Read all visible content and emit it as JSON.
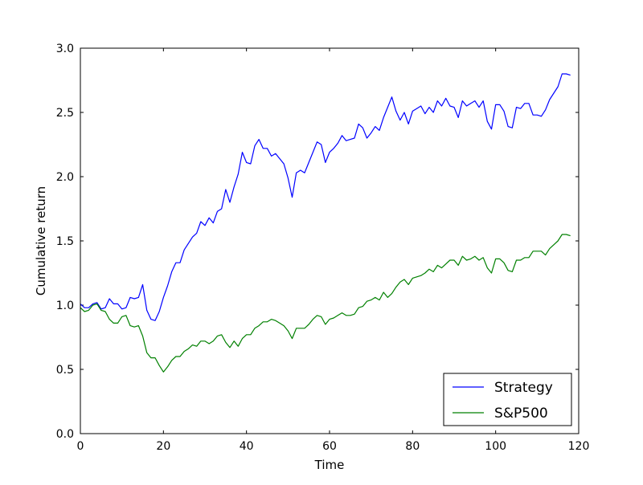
{
  "chart_data": {
    "type": "line",
    "xlabel": "Time",
    "ylabel": "Cumulative return",
    "xlim": [
      0,
      120
    ],
    "ylim": [
      0.0,
      3.0
    ],
    "xticks": [
      "0",
      "20",
      "40",
      "60",
      "80",
      "100",
      "120"
    ],
    "yticks": [
      "0.0",
      "0.5",
      "1.0",
      "1.5",
      "2.0",
      "2.5",
      "3.0"
    ],
    "grid": false,
    "legend_position": "lower-right",
    "series": [
      {
        "name": "Strategy",
        "color": "#0000ff",
        "x": [
          0,
          1,
          2,
          3,
          4,
          5,
          6,
          7,
          8,
          9,
          10,
          11,
          12,
          13,
          14,
          15,
          16,
          17,
          18,
          19,
          20,
          21,
          22,
          23,
          24,
          25,
          26,
          27,
          28,
          29,
          30,
          31,
          32,
          33,
          34,
          35,
          36,
          37,
          38,
          39,
          40,
          41,
          42,
          43,
          44,
          45,
          46,
          47,
          48,
          49,
          50,
          51,
          52,
          53,
          54,
          55,
          56,
          57,
          58,
          59,
          60,
          61,
          62,
          63,
          64,
          65,
          66,
          67,
          68,
          69,
          70,
          71,
          72,
          73,
          74,
          75,
          76,
          77,
          78,
          79,
          80,
          81,
          82,
          83,
          84,
          85,
          86,
          87,
          88,
          89,
          90,
          91,
          92,
          93,
          94,
          95,
          96,
          97,
          98,
          99,
          100,
          101,
          102,
          103,
          104,
          105,
          106,
          107,
          108,
          109,
          110,
          111,
          112,
          113,
          114,
          115,
          116,
          117,
          118
        ],
        "values": [
          1.01,
          0.98,
          0.98,
          1.01,
          1.02,
          0.97,
          0.98,
          1.05,
          1.01,
          1.01,
          0.97,
          0.98,
          1.06,
          1.05,
          1.06,
          1.16,
          0.96,
          0.89,
          0.88,
          0.95,
          1.06,
          1.15,
          1.26,
          1.33,
          1.33,
          1.43,
          1.48,
          1.53,
          1.56,
          1.65,
          1.62,
          1.68,
          1.64,
          1.73,
          1.75,
          1.9,
          1.8,
          1.92,
          2.02,
          2.19,
          2.11,
          2.1,
          2.24,
          2.29,
          2.22,
          2.22,
          2.16,
          2.18,
          2.14,
          2.1,
          1.99,
          1.84,
          2.03,
          2.05,
          2.03,
          2.11,
          2.19,
          2.27,
          2.25,
          2.11,
          2.19,
          2.22,
          2.26,
          2.32,
          2.28,
          2.29,
          2.3,
          2.41,
          2.38,
          2.3,
          2.34,
          2.39,
          2.36,
          2.46,
          2.54,
          2.62,
          2.51,
          2.44,
          2.5,
          2.41,
          2.51,
          2.53,
          2.55,
          2.49,
          2.54,
          2.5,
          2.59,
          2.55,
          2.61,
          2.55,
          2.54,
          2.46,
          2.59,
          2.55,
          2.57,
          2.59,
          2.54,
          2.59,
          2.43,
          2.37,
          2.56,
          2.56,
          2.51,
          2.39,
          2.38,
          2.54,
          2.53,
          2.57,
          2.57,
          2.48,
          2.48,
          2.47,
          2.52,
          2.6,
          2.65,
          2.7,
          2.8,
          2.8,
          2.79
        ]
      },
      {
        "name": "S&P500",
        "color": "#008000",
        "x": [
          0,
          1,
          2,
          3,
          4,
          5,
          6,
          7,
          8,
          9,
          10,
          11,
          12,
          13,
          14,
          15,
          16,
          17,
          18,
          19,
          20,
          21,
          22,
          23,
          24,
          25,
          26,
          27,
          28,
          29,
          30,
          31,
          32,
          33,
          34,
          35,
          36,
          37,
          38,
          39,
          40,
          41,
          42,
          43,
          44,
          45,
          46,
          47,
          48,
          49,
          50,
          51,
          52,
          53,
          54,
          55,
          56,
          57,
          58,
          59,
          60,
          61,
          62,
          63,
          64,
          65,
          66,
          67,
          68,
          69,
          70,
          71,
          72,
          73,
          74,
          75,
          76,
          77,
          78,
          79,
          80,
          81,
          82,
          83,
          84,
          85,
          86,
          87,
          88,
          89,
          90,
          91,
          92,
          93,
          94,
          95,
          96,
          97,
          98,
          99,
          100,
          101,
          102,
          103,
          104,
          105,
          106,
          107,
          108,
          109,
          110,
          111,
          112,
          113,
          114,
          115,
          116,
          117,
          118
        ],
        "values": [
          0.98,
          0.95,
          0.96,
          1.0,
          1.01,
          0.96,
          0.95,
          0.89,
          0.86,
          0.86,
          0.91,
          0.92,
          0.84,
          0.83,
          0.84,
          0.76,
          0.63,
          0.59,
          0.59,
          0.53,
          0.48,
          0.52,
          0.57,
          0.6,
          0.6,
          0.64,
          0.66,
          0.69,
          0.68,
          0.72,
          0.72,
          0.7,
          0.72,
          0.76,
          0.77,
          0.71,
          0.67,
          0.72,
          0.68,
          0.74,
          0.77,
          0.77,
          0.82,
          0.84,
          0.87,
          0.87,
          0.89,
          0.88,
          0.86,
          0.84,
          0.8,
          0.74,
          0.82,
          0.82,
          0.82,
          0.85,
          0.89,
          0.92,
          0.91,
          0.85,
          0.89,
          0.9,
          0.92,
          0.94,
          0.92,
          0.92,
          0.93,
          0.98,
          0.99,
          1.03,
          1.04,
          1.06,
          1.04,
          1.1,
          1.06,
          1.09,
          1.14,
          1.18,
          1.2,
          1.16,
          1.21,
          1.22,
          1.23,
          1.25,
          1.28,
          1.26,
          1.31,
          1.29,
          1.32,
          1.35,
          1.35,
          1.31,
          1.38,
          1.35,
          1.36,
          1.38,
          1.35,
          1.37,
          1.29,
          1.25,
          1.36,
          1.36,
          1.33,
          1.27,
          1.26,
          1.35,
          1.35,
          1.37,
          1.37,
          1.42,
          1.42,
          1.42,
          1.39,
          1.44,
          1.47,
          1.5,
          1.55,
          1.55,
          1.54
        ]
      }
    ]
  }
}
